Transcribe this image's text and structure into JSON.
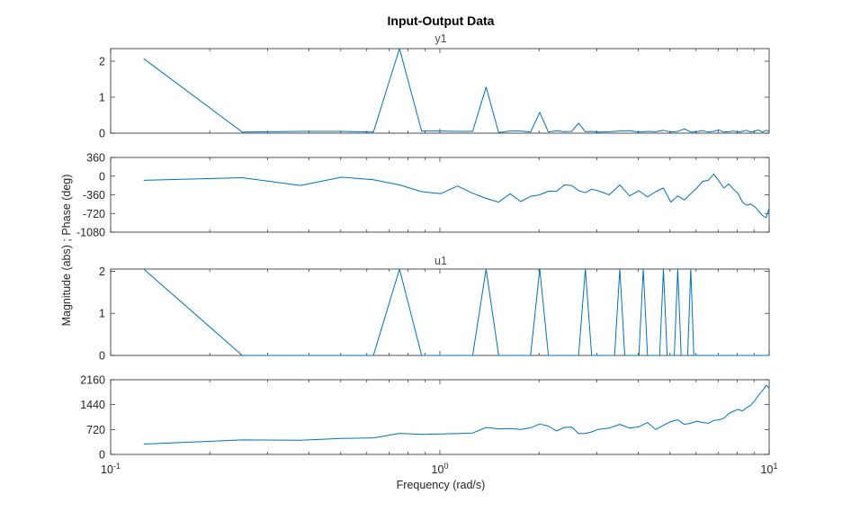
{
  "figure": {
    "title": "Input-Output Data",
    "ylabel": "Magnitude (abs) ; Phase (deg)",
    "xlabel": "Frequency  (rad/s)",
    "xticks": [
      {
        "base": "10",
        "exp": "-1"
      },
      {
        "base": "10",
        "exp": "0"
      },
      {
        "base": "10",
        "exp": "1"
      }
    ],
    "line_color": "#0072BD"
  },
  "chart_data": [
    {
      "type": "line",
      "title": "y1",
      "xscale": "log",
      "xlim": [
        0.1,
        10
      ],
      "ylim": [
        0,
        2.35
      ],
      "yticks": [
        0,
        1,
        2
      ],
      "ytick_labels": [
        "0",
        "1",
        "2"
      ],
      "series": [
        {
          "x": [
            0.126,
            0.251,
            0.377,
            0.503,
            0.628,
            0.754,
            0.88,
            1.005,
            1.131,
            1.257,
            1.382,
            1.508,
            1.634,
            1.759,
            1.885,
            2.011,
            2.136,
            2.262,
            2.388,
            2.513,
            2.639,
            2.765,
            2.89,
            3.016,
            3.267,
            3.519,
            3.77,
            4.021,
            4.273,
            4.524,
            4.775,
            5.027,
            5.278,
            5.529,
            5.781,
            6.032,
            6.283,
            6.535,
            6.786,
            7.037,
            7.288,
            7.54,
            7.791,
            8.042,
            8.294,
            8.545,
            8.796,
            9.048,
            9.299,
            9.55,
            9.802,
            10.0
          ],
          "values": [
            2.07,
            0.03,
            0.05,
            0.05,
            0.03,
            2.35,
            0.06,
            0.06,
            0.05,
            0.05,
            1.28,
            0.02,
            0.06,
            0.06,
            0.03,
            0.58,
            0.03,
            0.07,
            0.04,
            0.05,
            0.28,
            0.04,
            0.05,
            0.03,
            0.04,
            0.06,
            0.07,
            0.03,
            0.05,
            0.04,
            0.08,
            0.03,
            0.05,
            0.12,
            0.03,
            0.04,
            0.07,
            0.03,
            0.05,
            0.09,
            0.03,
            0.04,
            0.06,
            0.03,
            0.05,
            0.08,
            0.03,
            0.06,
            0.09,
            0.03,
            0.08,
            0.05
          ]
        }
      ]
    },
    {
      "type": "line",
      "xscale": "log",
      "xlim": [
        0.1,
        10
      ],
      "ylim": [
        -1080,
        360
      ],
      "yticks": [
        360,
        0,
        -360,
        -720,
        -1080
      ],
      "ytick_labels": [
        "360",
        "0",
        "-360",
        "-720",
        "-1080"
      ],
      "series": [
        {
          "x": [
            0.126,
            0.251,
            0.377,
            0.503,
            0.628,
            0.754,
            0.88,
            1.005,
            1.131,
            1.257,
            1.382,
            1.508,
            1.634,
            1.759,
            1.885,
            2.011,
            2.136,
            2.262,
            2.388,
            2.513,
            2.639,
            2.765,
            2.89,
            3.016,
            3.267,
            3.519,
            3.77,
            4.021,
            4.273,
            4.524,
            4.775,
            5.027,
            5.278,
            5.529,
            5.781,
            6.032,
            6.283,
            6.535,
            6.786,
            7.037,
            7.288,
            7.54,
            7.791,
            8.042,
            8.294,
            8.545,
            8.796,
            9.048,
            9.299,
            9.55,
            9.802,
            10.0
          ],
          "values": [
            -80,
            -30,
            -180,
            -20,
            -70,
            -170,
            -300,
            -340,
            -190,
            -330,
            -430,
            -500,
            -340,
            -490,
            -390,
            -360,
            -290,
            -290,
            -170,
            -180,
            -280,
            -320,
            -250,
            -280,
            -360,
            -170,
            -380,
            -280,
            -400,
            -300,
            -230,
            -500,
            -380,
            -460,
            -340,
            -230,
            -100,
            -80,
            40,
            -90,
            -230,
            -150,
            -250,
            -330,
            -500,
            -560,
            -540,
            -590,
            -680,
            -760,
            -800,
            -620
          ]
        }
      ]
    },
    {
      "type": "line",
      "title": "u1",
      "xscale": "log",
      "xlim": [
        0.1,
        10
      ],
      "ylim": [
        0,
        2.05
      ],
      "yticks": [
        0,
        1,
        2
      ],
      "ytick_labels": [
        "0",
        "1",
        "2"
      ],
      "series": [
        {
          "x": [
            0.126,
            0.251,
            0.628,
            0.754,
            0.88,
            1.257,
            1.382,
            1.508,
            1.885,
            2.011,
            2.136,
            2.639,
            2.765,
            2.89,
            3.393,
            3.519,
            3.644,
            4.021,
            4.147,
            4.273,
            4.65,
            4.775,
            4.901,
            5.152,
            5.278,
            5.404,
            5.655,
            5.781,
            5.906,
            10.0
          ],
          "values": [
            2.05,
            0,
            0,
            2.05,
            0,
            0,
            2.05,
            0,
            0,
            2.05,
            0,
            0,
            2.05,
            0,
            0,
            2.05,
            0,
            0,
            2.05,
            0,
            0,
            2.05,
            0,
            0,
            2.05,
            0,
            0,
            2.05,
            0,
            0
          ]
        }
      ]
    },
    {
      "type": "line",
      "xscale": "log",
      "xlim": [
        0.1,
        10
      ],
      "ylim": [
        0,
        2160
      ],
      "yticks": [
        0,
        720,
        1440,
        2160
      ],
      "ytick_labels": [
        "0",
        "720",
        "1440",
        "2160"
      ],
      "series": [
        {
          "x": [
            0.126,
            0.251,
            0.377,
            0.503,
            0.628,
            0.754,
            0.88,
            1.005,
            1.131,
            1.257,
            1.382,
            1.508,
            1.634,
            1.759,
            1.885,
            2.011,
            2.136,
            2.262,
            2.388,
            2.513,
            2.639,
            2.765,
            2.89,
            3.016,
            3.267,
            3.519,
            3.77,
            4.021,
            4.273,
            4.524,
            4.775,
            5.027,
            5.278,
            5.529,
            5.781,
            6.032,
            6.283,
            6.535,
            6.786,
            7.037,
            7.288,
            7.54,
            7.791,
            8.042,
            8.294,
            8.545,
            8.796,
            9.048,
            9.299,
            9.55,
            9.802,
            10.0
          ],
          "values": [
            300,
            420,
            410,
            460,
            480,
            610,
            580,
            590,
            600,
            620,
            780,
            740,
            750,
            720,
            770,
            880,
            820,
            680,
            780,
            790,
            600,
            610,
            650,
            720,
            760,
            870,
            760,
            800,
            920,
            720,
            840,
            950,
            1000,
            870,
            900,
            960,
            920,
            900,
            980,
            1000,
            1050,
            1180,
            1250,
            1300,
            1260,
            1350,
            1420,
            1560,
            1720,
            1850,
            2000,
            1920
          ]
        }
      ]
    }
  ]
}
